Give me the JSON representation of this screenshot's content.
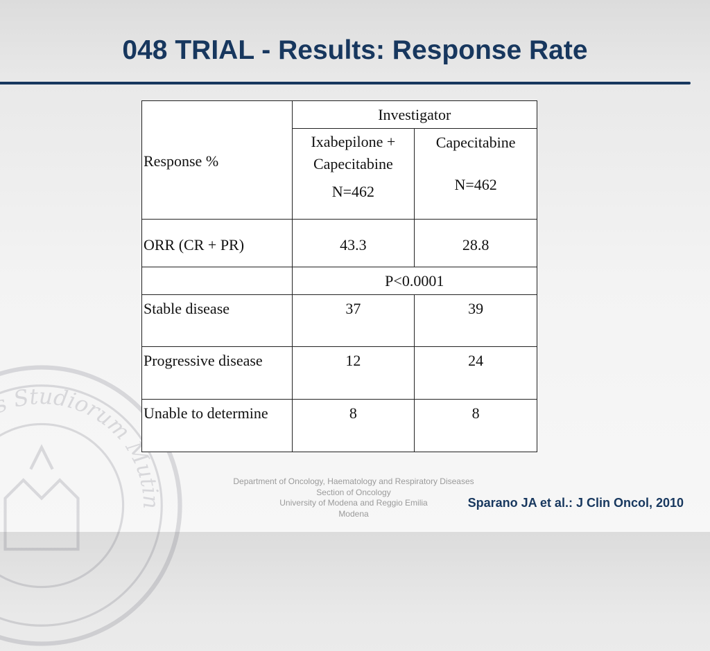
{
  "slide": {
    "title": "048 TRIAL - Results: Response Rate",
    "citation": "Sparano JA et al.: J Clin Oncol, 2010",
    "department": {
      "line1": "Department of Oncology, Haematology and Respiratory Diseases",
      "line2": "Section of Oncology",
      "line3": "University of Modena and Reggio Emilia",
      "line4": "Modena"
    },
    "seal_text": "Universitas Studiorum Mutinensis et Regiensis"
  },
  "table": {
    "response_header": "Response %",
    "group_header": "Investigator",
    "col1_name": "Ixabepilone + Capecitabine",
    "col1_n": "N=462",
    "col2_name": "Capecitabine",
    "col2_n": "N=462",
    "rows": [
      {
        "label": "ORR (CR + PR)",
        "v1": "43.3",
        "v2": "28.8"
      },
      {
        "p_value": "P<0.0001"
      },
      {
        "label": "Stable disease",
        "v1": "37",
        "v2": "39"
      },
      {
        "label": "Progressive disease",
        "v1": "12",
        "v2": "24"
      },
      {
        "label": "Unable to determine",
        "v1": "8",
        "v2": "8"
      }
    ]
  },
  "colors": {
    "title": "#17375e",
    "rule": "#17375e",
    "citation": "#17375e"
  }
}
